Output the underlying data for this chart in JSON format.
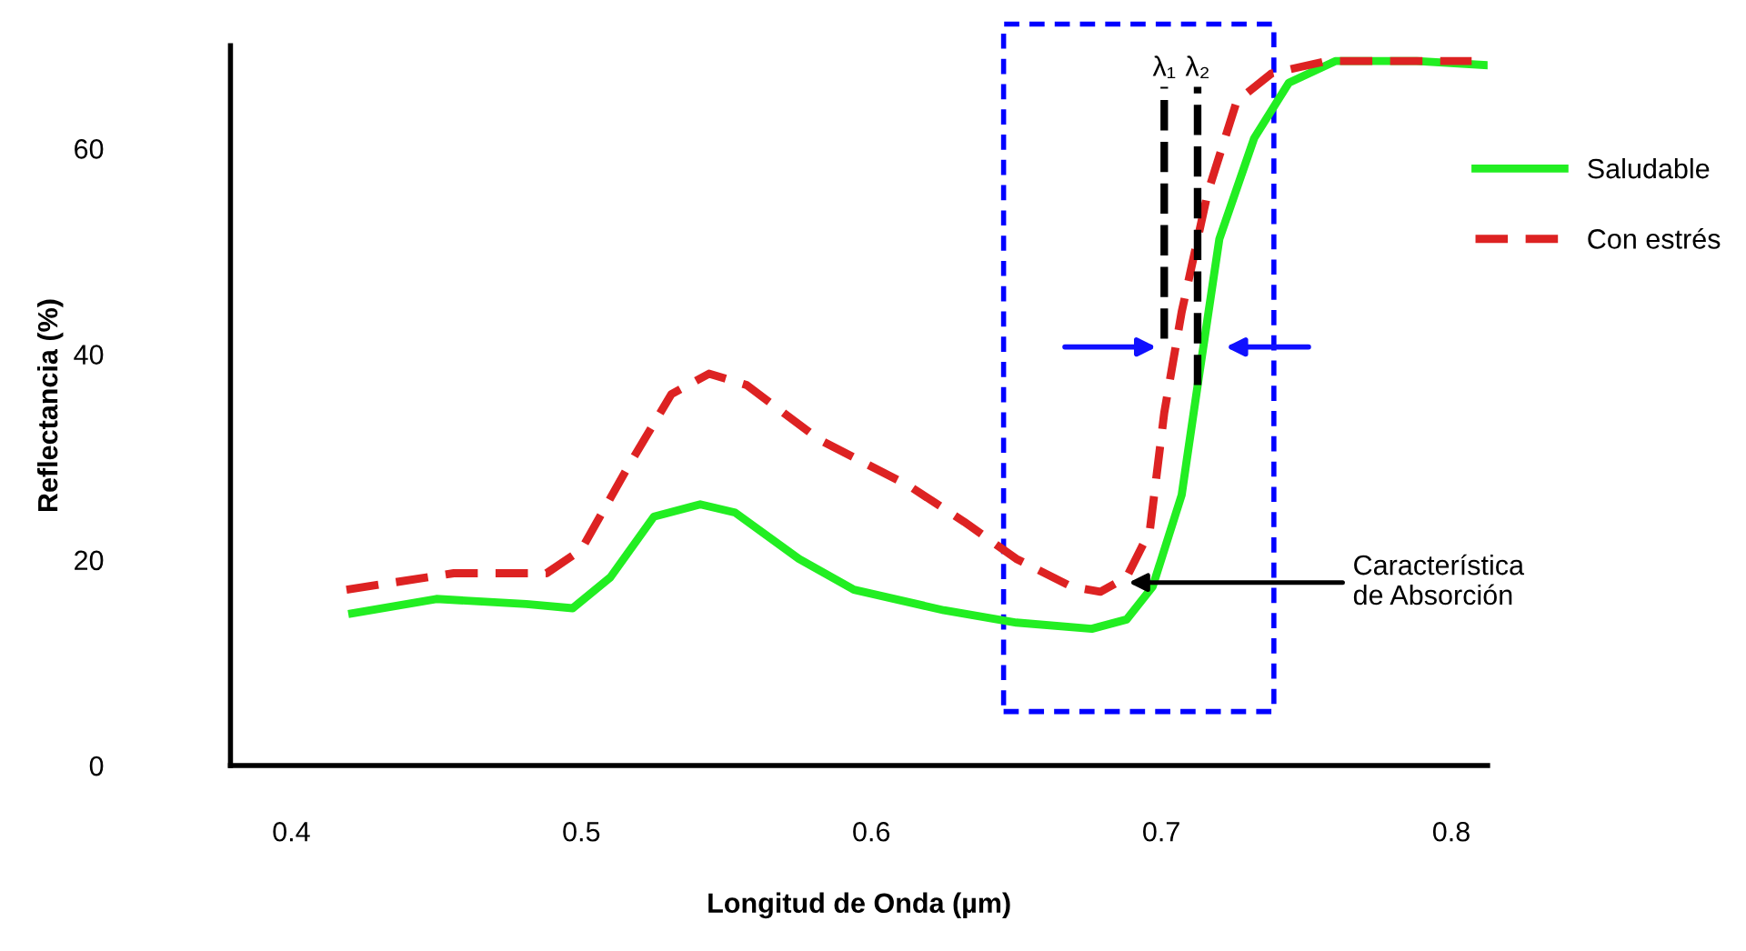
{
  "chart_data": {
    "type": "line",
    "xlabel": "Longitud de Onda (µm)",
    "ylabel": "Reflectancia (%)",
    "xlim": [
      0.379,
      0.8125
    ],
    "ylim": [
      0,
      70
    ],
    "xticks": [
      0.4,
      0.5,
      0.6,
      0.7,
      0.8
    ],
    "yticks": [
      0,
      20,
      40,
      60
    ],
    "grid": false,
    "legend": "right",
    "marker": "none",
    "series": [
      {
        "name": "Saludable",
        "color": "#22ee22",
        "line_style": "solid",
        "x": [
          0.421,
          0.45,
          0.481,
          0.497,
          0.51,
          0.525,
          0.541,
          0.553,
          0.575,
          0.594,
          0.625,
          0.65,
          0.676,
          0.688,
          0.697,
          0.707,
          0.713,
          0.72,
          0.732,
          0.744,
          0.76,
          0.788,
          0.812
        ],
        "values": [
          14.8,
          16.2,
          15.7,
          15.3,
          18.3,
          24.2,
          25.4,
          24.6,
          20.1,
          17.1,
          15.1,
          13.9,
          13.3,
          14.2,
          17.4,
          26.3,
          37.9,
          51.2,
          61,
          66.4,
          68.5,
          68.5,
          68.1
        ]
      },
      {
        "name": "Con estrés",
        "color": "#dd2222",
        "line_style": "dashed",
        "x": [
          0.419,
          0.456,
          0.488,
          0.5,
          0.516,
          0.531,
          0.544,
          0.557,
          0.582,
          0.613,
          0.632,
          0.65,
          0.669,
          0.679,
          0.688,
          0.696,
          0.701,
          0.707,
          0.716,
          0.726,
          0.738,
          0.757,
          0.807
        ],
        "values": [
          17.1,
          18.7,
          18.7,
          21,
          29,
          36.1,
          38.1,
          37,
          31.7,
          27.2,
          23.7,
          20.1,
          17.4,
          16.9,
          18.3,
          22.8,
          34.3,
          44.1,
          55.7,
          64.6,
          67.3,
          68.5,
          68.5
        ]
      }
    ],
    "annotations": [
      {
        "text": "λ₁",
        "x": 0.701,
        "y": 41.5
      },
      {
        "text": "λ₂",
        "x": 0.7125,
        "y": 37
      },
      {
        "text": "Característica\nde Absorción",
        "x": 0.687,
        "y": 17.8
      }
    ]
  }
}
